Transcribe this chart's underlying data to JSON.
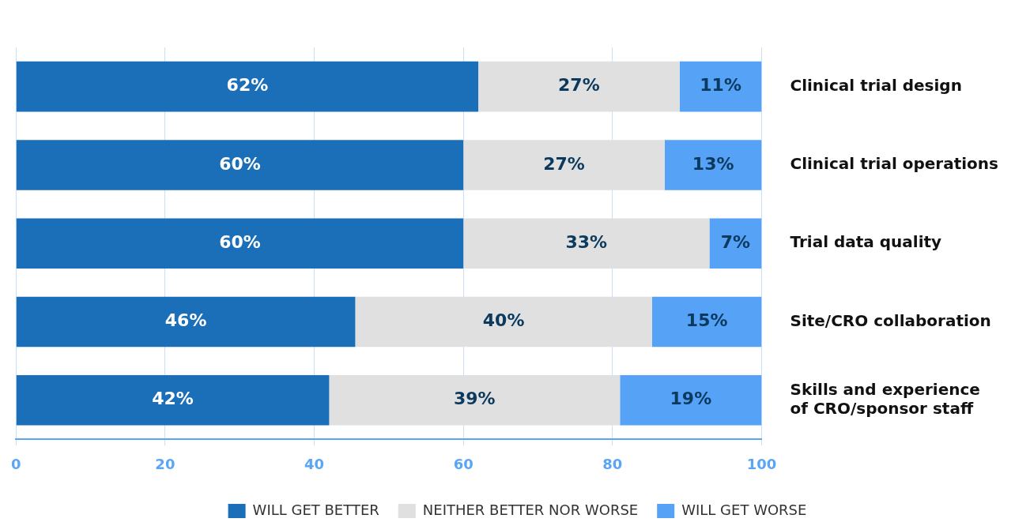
{
  "chart_data": {
    "type": "bar",
    "orientation": "horizontal",
    "stacked": true,
    "grid": "x",
    "legend": "bottom",
    "categories": [
      "Clinical trial design",
      "Clinical trial operations",
      "Trial data quality",
      "Site/CRO collaboration",
      "Skills and experience of CRO/sponsor staff"
    ],
    "series": [
      {
        "name": "WILL GET BETTER",
        "color": "#1b6fb8",
        "values": [
          62,
          60,
          60,
          45.5,
          42
        ],
        "value_labels": [
          "62%",
          "60%",
          "60%",
          "46%",
          "42%"
        ]
      },
      {
        "name": "NEITHER BETTER NOR WORSE",
        "color": "#e0e0e0",
        "values": [
          27,
          27,
          33,
          39.8,
          39
        ],
        "value_labels": [
          "27%",
          "27%",
          "33%",
          "40%",
          "39%"
        ]
      },
      {
        "name": "WILL GET WORSE",
        "color": "#55a2f7",
        "values": [
          11,
          13,
          7,
          14.7,
          19
        ],
        "value_labels": [
          "11%",
          "13%",
          "7%",
          "15%",
          "19%"
        ]
      }
    ],
    "xlim": [
      0,
      100
    ],
    "xticks": [
      0,
      20,
      40,
      60,
      80,
      100
    ]
  }
}
